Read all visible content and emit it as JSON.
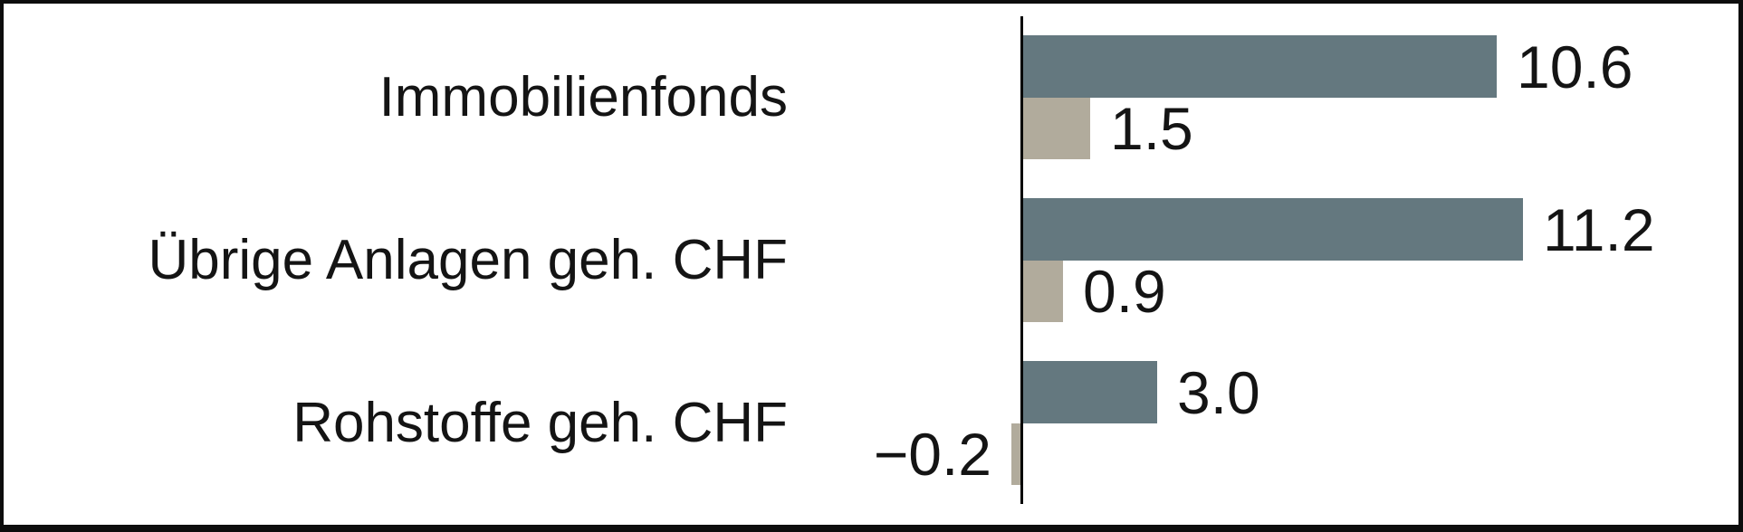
{
  "chart_data": {
    "type": "bar",
    "orientation": "horizontal",
    "title": "",
    "categories": [
      "Immobilienfonds",
      "Übrige Anlagen geh. CHF",
      "Rohstoffe geh. CHF"
    ],
    "series": [
      {
        "name": "series-primary",
        "color": "#64787f",
        "values": [
          10.6,
          11.2,
          3.0
        ],
        "labels": [
          "10.6",
          "11.2",
          "3.0"
        ]
      },
      {
        "name": "series-secondary",
        "color": "#b1ab9c",
        "values": [
          1.5,
          0.9,
          -0.2
        ],
        "labels": [
          "1.5",
          "0.9",
          "−0.2"
        ]
      }
    ],
    "xlim": [
      -0.5,
      16.1
    ],
    "grid": false,
    "legend": false,
    "axis_color": "#000000",
    "text_color": "#141414",
    "background": "#ffffff",
    "frame_border_color": "#0d0d0d"
  }
}
